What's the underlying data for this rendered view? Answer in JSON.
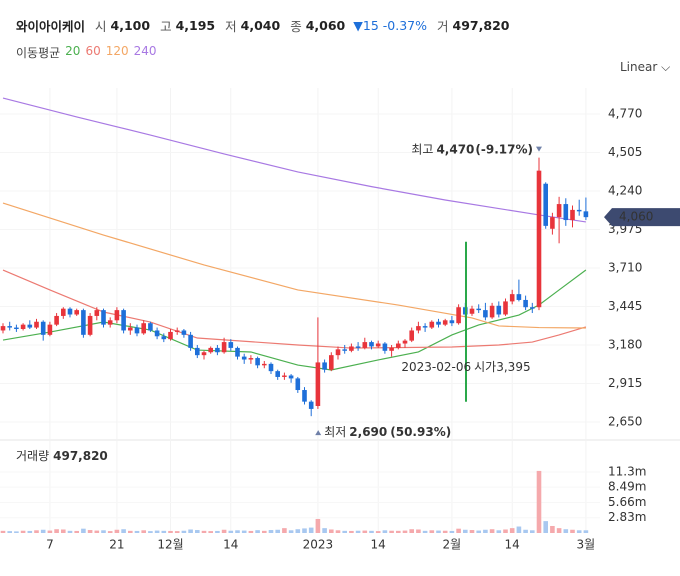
{
  "chart_data": {
    "type": "candlestick",
    "header": {
      "name": "와이아이케이",
      "items": [
        {
          "label": "시",
          "value": "4,100"
        },
        {
          "label": "고",
          "value": "4,195"
        },
        {
          "label": "저",
          "value": "4,040"
        },
        {
          "label": "종",
          "value": "4,060"
        }
      ],
      "change": "15",
      "change_pct": "-0.37%",
      "volume_label": "거",
      "volume": "497,820"
    },
    "ma_legend_label": "이동평균",
    "scale_mode": "Linear",
    "categories": [
      null,
      null,
      null,
      null,
      null,
      null,
      null,
      "7",
      null,
      null,
      null,
      null,
      null,
      null,
      null,
      null,
      null,
      "21",
      null,
      null,
      null,
      null,
      null,
      null,
      null,
      "12월",
      null,
      null,
      null,
      null,
      null,
      null,
      null,
      null,
      "14",
      null,
      null,
      null,
      null,
      null,
      null,
      null,
      null,
      null,
      null,
      null,
      null,
      "2023",
      null,
      null,
      null,
      null,
      null,
      null,
      null,
      null,
      "14",
      null,
      null,
      null,
      null,
      null,
      null,
      null,
      null,
      null,
      null,
      "2월",
      null,
      null,
      null,
      null,
      null,
      null,
      null,
      null,
      "14",
      null,
      null,
      null,
      null,
      null,
      null,
      null,
      null,
      null,
      null,
      "3월"
    ],
    "ohlc": [
      [
        3280,
        3330,
        3260,
        3310
      ],
      [
        3310,
        3340,
        3280,
        3300
      ],
      [
        3300,
        3320,
        3270,
        3290
      ],
      [
        3290,
        3330,
        3280,
        3320
      ],
      [
        3320,
        3350,
        3290,
        3300
      ],
      [
        3300,
        3360,
        3290,
        3340
      ],
      [
        3340,
        3350,
        3210,
        3250
      ],
      [
        3250,
        3340,
        3240,
        3320
      ],
      [
        3320,
        3400,
        3310,
        3380
      ],
      [
        3380,
        3440,
        3360,
        3430
      ],
      [
        3430,
        3440,
        3370,
        3390
      ],
      [
        3390,
        3430,
        3380,
        3420
      ],
      [
        3420,
        3430,
        3230,
        3250
      ],
      [
        3250,
        3400,
        3240,
        3380
      ],
      [
        3380,
        3440,
        3350,
        3420
      ],
      [
        3420,
        3430,
        3300,
        3320
      ],
      [
        3320,
        3370,
        3300,
        3350
      ],
      [
        3350,
        3440,
        3330,
        3420
      ],
      [
        3420,
        3430,
        3260,
        3280
      ],
      [
        3280,
        3330,
        3250,
        3300
      ],
      [
        3300,
        3320,
        3240,
        3260
      ],
      [
        3260,
        3350,
        3250,
        3330
      ],
      [
        3330,
        3340,
        3270,
        3280
      ],
      [
        3280,
        3300,
        3220,
        3240
      ],
      [
        3240,
        3260,
        3200,
        3220
      ],
      [
        3220,
        3290,
        3210,
        3270
      ],
      [
        3270,
        3300,
        3250,
        3280
      ],
      [
        3280,
        3290,
        3230,
        3250
      ],
      [
        3250,
        3270,
        3140,
        3160
      ],
      [
        3160,
        3180,
        3090,
        3110
      ],
      [
        3110,
        3140,
        3080,
        3130
      ],
      [
        3130,
        3170,
        3120,
        3160
      ],
      [
        3160,
        3180,
        3110,
        3130
      ],
      [
        3130,
        3230,
        3120,
        3200
      ],
      [
        3200,
        3220,
        3140,
        3160
      ],
      [
        3160,
        3170,
        3080,
        3100
      ],
      [
        3100,
        3120,
        3050,
        3080
      ],
      [
        3080,
        3110,
        3050,
        3090
      ],
      [
        3090,
        3100,
        3020,
        3040
      ],
      [
        3040,
        3070,
        3020,
        3050
      ],
      [
        3050,
        3060,
        2980,
        3000
      ],
      [
        3000,
        3010,
        2940,
        2960
      ],
      [
        2960,
        2990,
        2940,
        2970
      ],
      [
        2970,
        2980,
        2920,
        2950
      ],
      [
        2950,
        2960,
        2850,
        2870
      ],
      [
        2870,
        2890,
        2770,
        2790
      ],
      [
        2790,
        2800,
        2690,
        2740
      ],
      [
        2760,
        3370,
        2740,
        3060
      ],
      [
        3060,
        3080,
        2990,
        3010
      ],
      [
        3010,
        3130,
        3000,
        3110
      ],
      [
        3110,
        3170,
        3080,
        3150
      ],
      [
        3150,
        3180,
        3120,
        3140
      ],
      [
        3140,
        3190,
        3130,
        3170
      ],
      [
        3170,
        3200,
        3140,
        3160
      ],
      [
        3160,
        3230,
        3150,
        3200
      ],
      [
        3200,
        3210,
        3150,
        3170
      ],
      [
        3170,
        3210,
        3160,
        3190
      ],
      [
        3190,
        3200,
        3120,
        3140
      ],
      [
        3140,
        3180,
        3100,
        3160
      ],
      [
        3160,
        3210,
        3150,
        3190
      ],
      [
        3190,
        3220,
        3160,
        3210
      ],
      [
        3210,
        3300,
        3200,
        3280
      ],
      [
        3280,
        3340,
        3260,
        3310
      ],
      [
        3310,
        3330,
        3270,
        3300
      ],
      [
        3300,
        3350,
        3290,
        3340
      ],
      [
        3340,
        3360,
        3300,
        3320
      ],
      [
        3320,
        3360,
        3310,
        3350
      ],
      [
        3350,
        3380,
        3310,
        3330
      ],
      [
        3330,
        3460,
        3320,
        3440
      ],
      [
        3440,
        3470,
        3370,
        3390
      ],
      [
        3395,
        3450,
        3380,
        3430
      ],
      [
        3430,
        3460,
        3400,
        3420
      ],
      [
        3420,
        3470,
        3350,
        3370
      ],
      [
        3370,
        3470,
        3360,
        3450
      ],
      [
        3450,
        3480,
        3370,
        3390
      ],
      [
        3390,
        3500,
        3380,
        3480
      ],
      [
        3480,
        3560,
        3460,
        3530
      ],
      [
        3530,
        3630,
        3480,
        3490
      ],
      [
        3490,
        3520,
        3420,
        3440
      ],
      [
        3440,
        3470,
        3400,
        3430
      ],
      [
        3440,
        4470,
        3420,
        4380
      ],
      [
        4290,
        4300,
        3980,
        4000
      ],
      [
        3980,
        4090,
        3940,
        4060
      ],
      [
        4060,
        4200,
        3880,
        4150
      ],
      [
        4150,
        4190,
        4000,
        4040
      ],
      [
        4040,
        4140,
        3990,
        4110
      ],
      [
        4110,
        4180,
        4070,
        4100
      ],
      [
        4100,
        4195,
        4040,
        4060
      ]
    ],
    "up_color": "#e8343b",
    "down_color": "#1e6fd9",
    "ylim": [
      2526,
      4949
    ],
    "yticks": [
      {
        "value": 2650,
        "label": "2,650"
      },
      {
        "value": 2915,
        "label": "2,915"
      },
      {
        "value": 3180,
        "label": "3,180"
      },
      {
        "value": 3445,
        "label": "3,445"
      },
      {
        "value": 3710,
        "label": "3,710"
      },
      {
        "value": 3975,
        "label": "3,975"
      },
      {
        "value": 4240,
        "label": "4,240"
      },
      {
        "value": 4505,
        "label": "4,505"
      },
      {
        "value": 4770,
        "label": "4,770"
      }
    ],
    "volume_title": "거래량",
    "volume_value": "497,820",
    "volumes": [
      400000,
      350000,
      300000,
      420000,
      380000,
      500000,
      600000,
      450000,
      700000,
      650000,
      400000,
      380000,
      800000,
      550000,
      450000,
      500000,
      350000,
      600000,
      700000,
      400000,
      380000,
      500000,
      350000,
      450000,
      400000,
      380000,
      350000,
      420000,
      650000,
      550000,
      400000,
      350000,
      380000,
      600000,
      420000,
      500000,
      450000,
      380000,
      520000,
      400000,
      550000,
      600000,
      900000,
      500000,
      700000,
      850000,
      1000000,
      2600000,
      900000,
      650000,
      500000,
      400000,
      380000,
      420000,
      450000,
      400000,
      350000,
      500000,
      420000,
      400000,
      450000,
      700000,
      650000,
      400000,
      500000,
      450000,
      420000,
      380000,
      800000,
      600000,
      550000,
      450000,
      600000,
      700000,
      500000,
      650000,
      900000,
      1200000,
      600000,
      500000,
      11500000,
      2200000,
      1300000,
      900000,
      700000,
      600000,
      500000,
      497820
    ],
    "volume_up_color": "#f5a9ac",
    "volume_down_color": "#a8c8f0",
    "vol_ylim": [
      0,
      16300000
    ],
    "vol_yticks": [
      {
        "value": 2830000,
        "label": "2.83m"
      },
      {
        "value": 5660000,
        "label": "5.66m"
      },
      {
        "value": 8490000,
        "label": "8.49m"
      },
      {
        "value": 11300000,
        "label": "11.3m"
      }
    ],
    "ma_series": [
      {
        "name": "20",
        "color": "#4cb050",
        "x": [
          0,
          7,
          15,
          22,
          29,
          37,
          44,
          49,
          56,
          62,
          67,
          71,
          77,
          80,
          83,
          87
        ],
        "values": [
          3214,
          3269,
          3338,
          3283,
          3145,
          3132,
          3042,
          3008,
          3077,
          3132,
          3249,
          3318,
          3386,
          3455,
          3559,
          3696
        ]
      },
      {
        "name": "60",
        "color": "#ec7a72",
        "x": [
          0,
          7,
          15,
          22,
          29,
          44,
          52,
          67,
          74,
          79,
          83,
          87
        ],
        "values": [
          3696,
          3559,
          3407,
          3338,
          3228,
          3180,
          3159,
          3166,
          3180,
          3200,
          3249,
          3304
        ]
      },
      {
        "name": "120",
        "color": "#f3a765",
        "x": [
          0,
          15,
          30,
          44,
          59,
          70,
          74,
          80,
          87
        ],
        "values": [
          4157,
          3937,
          3731,
          3559,
          3455,
          3366,
          3311,
          3300,
          3297
        ]
      },
      {
        "name": "240",
        "color": "#a879e3",
        "x": [
          0,
          11,
          22,
          33,
          44,
          55,
          66,
          80,
          87
        ],
        "values": [
          4880,
          4750,
          4625,
          4495,
          4371,
          4270,
          4178,
          4075,
          4027
        ]
      }
    ],
    "annotations": {
      "max": {
        "text": "최고",
        "index": 80,
        "value": 4470,
        "value_label": "4,470",
        "change": "(-9.17%)"
      },
      "min": {
        "text": "최저",
        "index": 46,
        "value": 2690,
        "value_label": "2,690",
        "change": "(50.93%)"
      },
      "crosshair": {
        "date": "2023-02-06",
        "index": 70,
        "field": "시가",
        "value": 3395,
        "value_label": "3,395",
        "color": "#2aa84a"
      },
      "last_price": {
        "value": 4060,
        "label": "4,060"
      }
    }
  }
}
